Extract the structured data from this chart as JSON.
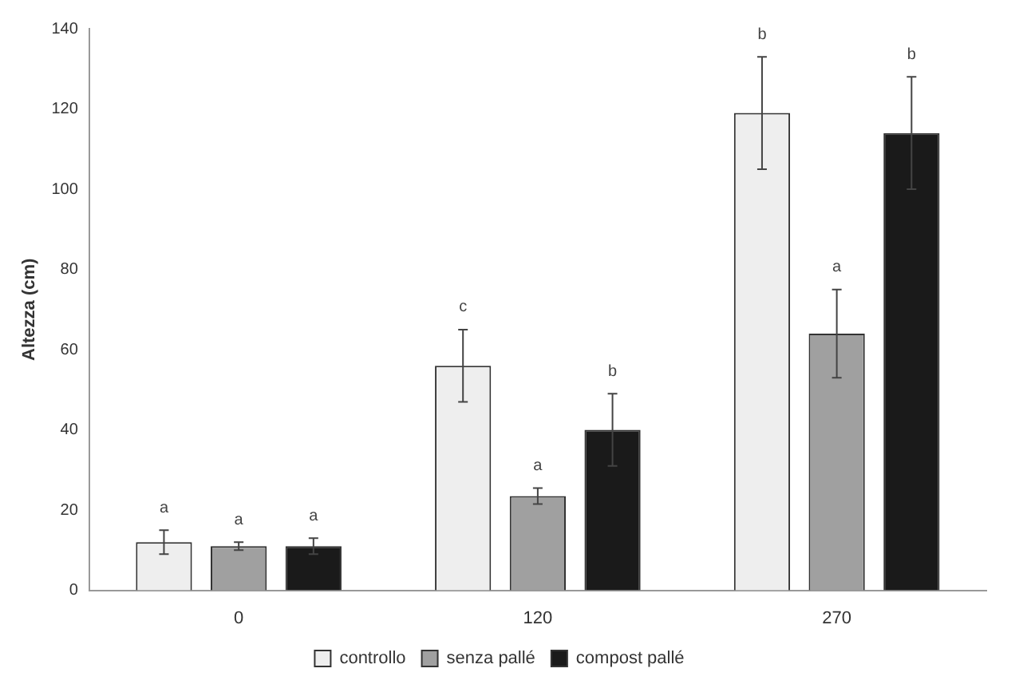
{
  "chart_data": {
    "type": "bar",
    "ylabel": "Altezza (cm)",
    "categories": [
      "0",
      "120",
      "270"
    ],
    "series": [
      {
        "name": "controllo",
        "color": "#eeeeee",
        "values": [
          12,
          56,
          119
        ],
        "errors": [
          3,
          9,
          14
        ]
      },
      {
        "name": "senza pallé",
        "color": "#a0a0a0",
        "values": [
          11,
          23.5,
          64
        ],
        "errors": [
          1,
          2,
          11
        ]
      },
      {
        "name": "compost pallé",
        "color": "#1a1a1a",
        "values": [
          11,
          40,
          114
        ],
        "errors": [
          2,
          9,
          14
        ]
      }
    ],
    "annotations": [
      "a",
      "a",
      "a",
      "c",
      "a",
      "b",
      "b",
      "a",
      "b"
    ],
    "ylim": [
      0,
      140
    ],
    "yticks": [
      0,
      20,
      40,
      60,
      80,
      100,
      120,
      140
    ],
    "grid": false,
    "legend": "bottom"
  }
}
